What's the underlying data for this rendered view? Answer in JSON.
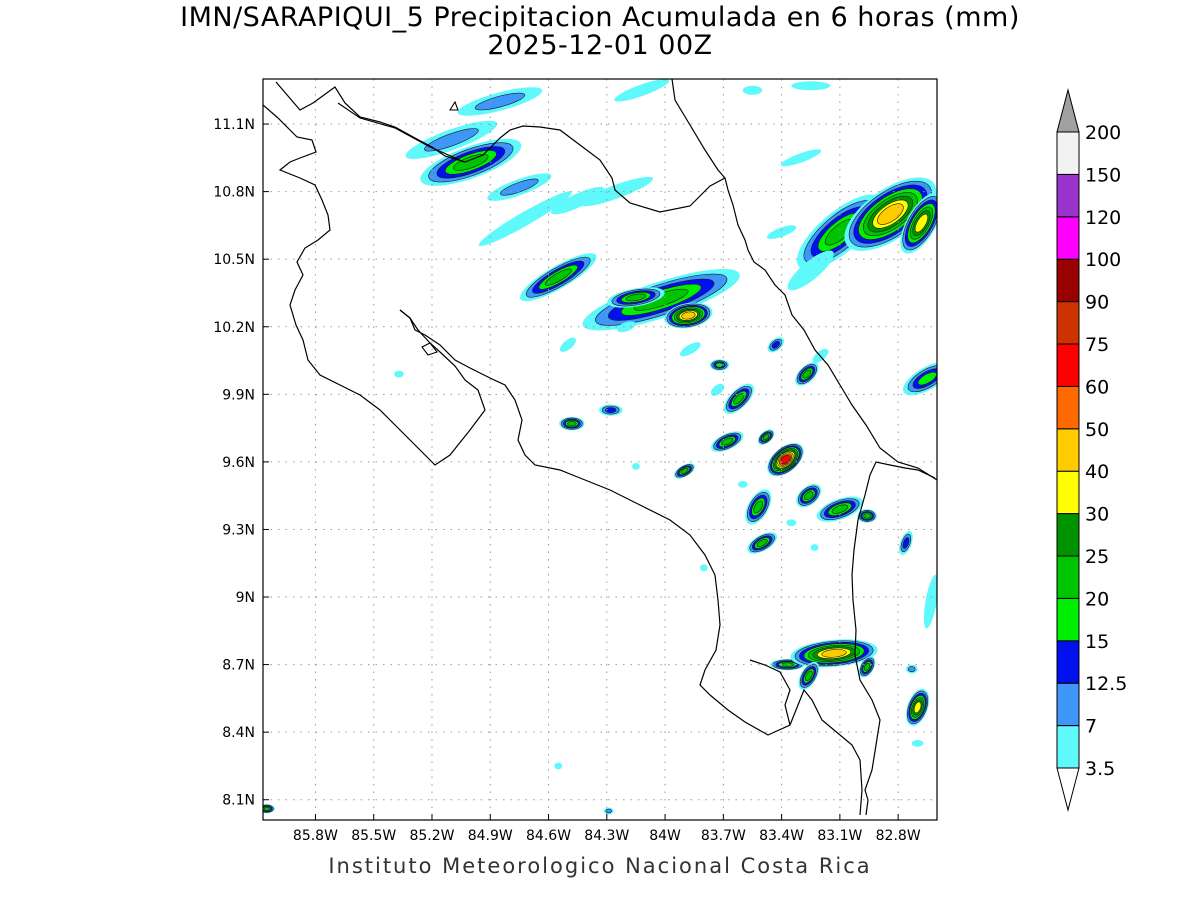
{
  "title_line1": "IMN/SARAPIQUI_5 Precipitacion Acumulada en 6 horas (mm)",
  "title_line2": "2025-12-01 00Z",
  "footer": "Instituto Meteorologico Nacional Costa Rica",
  "map": {
    "lon_range": [
      -86.07,
      -82.6
    ],
    "lat_range": [
      8.01,
      11.3
    ],
    "lat_ticks": [
      "11.1N",
      "10.8N",
      "10.5N",
      "10.2N",
      "9.9N",
      "9.6N",
      "9.3N",
      "9N",
      "8.7N",
      "8.4N",
      "8.1N"
    ],
    "lat_values": [
      11.1,
      10.8,
      10.5,
      10.2,
      9.9,
      9.6,
      9.3,
      9.0,
      8.7,
      8.4,
      8.1
    ],
    "lon_ticks": [
      "85.8W",
      "85.5W",
      "85.2W",
      "84.9W",
      "84.6W",
      "84.3W",
      "84W",
      "83.7W",
      "83.4W",
      "83.1W",
      "82.8W"
    ],
    "lon_values": [
      -85.8,
      -85.5,
      -85.2,
      -84.9,
      -84.6,
      -84.3,
      -84.0,
      -83.7,
      -83.4,
      -83.1,
      -82.8
    ],
    "grid": true,
    "coastline_color": "#000000"
  },
  "colorbar": {
    "levels": [
      "3.5",
      "7",
      "12.5",
      "15",
      "20",
      "25",
      "30",
      "40",
      "50",
      "60",
      "75",
      "90",
      "100",
      "120",
      "150",
      "200"
    ],
    "colors": [
      "#5ff8fb",
      "#3e96f9",
      "#0011ee",
      "#00ef00",
      "#00c400",
      "#009300",
      "#ffff00",
      "#ffcc00",
      "#ff6a00",
      "#ff0000",
      "#cc3300",
      "#990000",
      "#ff00ff",
      "#9933cc",
      "#f2f2f2",
      "#a0a0a0"
    ],
    "bins": [
      "3.5-7",
      "7-12.5",
      "12.5-15",
      "15-20",
      "20-25",
      "25-30",
      "30-40",
      "40-50",
      "50-60",
      "60-75",
      "75-90",
      "90-100",
      "100-120",
      "120-150",
      "150-200",
      ">200"
    ]
  },
  "precip_cells": [
    {
      "lon": -85.0,
      "lat": 10.93,
      "len": 0.55,
      "wid": 0.14,
      "rot": -20,
      "max": 20
    },
    {
      "lon": -84.85,
      "lat": 11.2,
      "len": 0.45,
      "wid": 0.08,
      "rot": -15,
      "max": 7
    },
    {
      "lon": -85.1,
      "lat": 11.03,
      "len": 0.5,
      "wid": 0.09,
      "rot": -20,
      "max": 7
    },
    {
      "lon": -84.75,
      "lat": 10.82,
      "len": 0.35,
      "wid": 0.07,
      "rot": -20,
      "max": 7
    },
    {
      "lon": -84.72,
      "lat": 10.68,
      "len": 0.55,
      "wid": 0.06,
      "rot": -30,
      "max": 3.5
    },
    {
      "lon": -84.45,
      "lat": 10.76,
      "len": 0.3,
      "wid": 0.06,
      "rot": -25,
      "max": 3.5
    },
    {
      "lon": -84.25,
      "lat": 10.8,
      "len": 0.4,
      "wid": 0.06,
      "rot": -20,
      "max": 3.5
    },
    {
      "lon": -84.12,
      "lat": 11.25,
      "len": 0.3,
      "wid": 0.05,
      "rot": -20,
      "max": 3.5
    },
    {
      "lon": -84.55,
      "lat": 10.42,
      "len": 0.45,
      "wid": 0.1,
      "rot": -30,
      "max": 20
    },
    {
      "lon": -84.02,
      "lat": 10.32,
      "len": 0.85,
      "wid": 0.16,
      "rot": -18,
      "max": 20
    },
    {
      "lon": -83.88,
      "lat": 10.25,
      "len": 0.25,
      "wid": 0.11,
      "rot": -10,
      "max": 40
    },
    {
      "lon": -84.15,
      "lat": 10.33,
      "len": 0.3,
      "wid": 0.08,
      "rot": -10,
      "max": 20
    },
    {
      "lon": -83.1,
      "lat": 10.62,
      "len": 0.55,
      "wid": 0.18,
      "rot": -40,
      "max": 20
    },
    {
      "lon": -82.84,
      "lat": 10.7,
      "len": 0.55,
      "wid": 0.22,
      "rot": -35,
      "max": 40
    },
    {
      "lon": -82.68,
      "lat": 10.66,
      "len": 0.35,
      "wid": 0.13,
      "rot": -60,
      "max": 30
    },
    {
      "lon": -83.25,
      "lat": 10.45,
      "len": 0.3,
      "wid": 0.08,
      "rot": -40,
      "max": 3.5
    },
    {
      "lon": -82.65,
      "lat": 9.97,
      "len": 0.28,
      "wid": 0.1,
      "rot": -30,
      "max": 15
    },
    {
      "lon": -83.62,
      "lat": 9.88,
      "len": 0.2,
      "wid": 0.08,
      "rot": -45,
      "max": 20
    },
    {
      "lon": -83.27,
      "lat": 9.99,
      "len": 0.15,
      "wid": 0.07,
      "rot": -45,
      "max": 20
    },
    {
      "lon": -83.72,
      "lat": 10.03,
      "len": 0.1,
      "wid": 0.05,
      "rot": 0,
      "max": 15
    },
    {
      "lon": -83.68,
      "lat": 9.69,
      "len": 0.18,
      "wid": 0.07,
      "rot": -25,
      "max": 20
    },
    {
      "lon": -83.38,
      "lat": 9.61,
      "len": 0.22,
      "wid": 0.11,
      "rot": -40,
      "max": 60
    },
    {
      "lon": -83.48,
      "lat": 9.71,
      "len": 0.1,
      "wid": 0.05,
      "rot": -40,
      "max": 20
    },
    {
      "lon": -83.52,
      "lat": 9.4,
      "len": 0.2,
      "wid": 0.09,
      "rot": -60,
      "max": 20
    },
    {
      "lon": -83.5,
      "lat": 9.24,
      "len": 0.17,
      "wid": 0.07,
      "rot": -30,
      "max": 20
    },
    {
      "lon": -83.26,
      "lat": 9.45,
      "len": 0.15,
      "wid": 0.08,
      "rot": -40,
      "max": 20
    },
    {
      "lon": -83.1,
      "lat": 9.39,
      "len": 0.25,
      "wid": 0.09,
      "rot": -20,
      "max": 20
    },
    {
      "lon": -82.96,
      "lat": 9.36,
      "len": 0.1,
      "wid": 0.06,
      "rot": 0,
      "max": 20
    },
    {
      "lon": -84.48,
      "lat": 9.77,
      "len": 0.13,
      "wid": 0.06,
      "rot": 0,
      "max": 20
    },
    {
      "lon": -84.28,
      "lat": 9.83,
      "len": 0.12,
      "wid": 0.05,
      "rot": 0,
      "max": 12.5
    },
    {
      "lon": -83.9,
      "lat": 9.56,
      "len": 0.12,
      "wid": 0.05,
      "rot": -30,
      "max": 20
    },
    {
      "lon": -82.76,
      "lat": 9.24,
      "len": 0.13,
      "wid": 0.05,
      "rot": -70,
      "max": 12.5
    },
    {
      "lon": -83.37,
      "lat": 8.7,
      "len": 0.18,
      "wid": 0.05,
      "rot": 0,
      "max": 20
    },
    {
      "lon": -83.13,
      "lat": 8.75,
      "len": 0.45,
      "wid": 0.12,
      "rot": -5,
      "max": 40
    },
    {
      "lon": -83.26,
      "lat": 8.65,
      "len": 0.16,
      "wid": 0.07,
      "rot": -60,
      "max": 20
    },
    {
      "lon": -82.96,
      "lat": 8.69,
      "len": 0.12,
      "wid": 0.06,
      "rot": -60,
      "max": 20
    },
    {
      "lon": -82.7,
      "lat": 8.51,
      "len": 0.2,
      "wid": 0.09,
      "rot": -70,
      "max": 30
    },
    {
      "lon": -82.73,
      "lat": 8.68,
      "len": 0.06,
      "wid": 0.04,
      "rot": 0,
      "max": 7
    },
    {
      "lon": -82.63,
      "lat": 8.98,
      "len": 0.28,
      "wid": 0.05,
      "rot": -80,
      "max": 3.5
    },
    {
      "lon": -86.05,
      "lat": 8.06,
      "len": 0.08,
      "wid": 0.04,
      "rot": 0,
      "max": 20
    },
    {
      "lon": -84.29,
      "lat": 8.05,
      "len": 0.05,
      "wid": 0.03,
      "rot": 0,
      "max": 7
    },
    {
      "lon": -84.55,
      "lat": 8.25,
      "len": 0.04,
      "wid": 0.03,
      "rot": 0,
      "max": 3.5
    },
    {
      "lon": -85.37,
      "lat": 9.99,
      "len": 0.05,
      "wid": 0.03,
      "rot": 0,
      "max": 3.5
    },
    {
      "lon": -83.6,
      "lat": 9.5,
      "len": 0.05,
      "wid": 0.03,
      "rot": 0,
      "max": 3.5
    },
    {
      "lon": -83.8,
      "lat": 9.13,
      "len": 0.04,
      "wid": 0.03,
      "rot": 0,
      "max": 3.5
    },
    {
      "lon": -84.15,
      "lat": 9.58,
      "len": 0.04,
      "wid": 0.03,
      "rot": 0,
      "max": 3.5
    },
    {
      "lon": -83.73,
      "lat": 9.92,
      "len": 0.08,
      "wid": 0.04,
      "rot": -40,
      "max": 3.5
    },
    {
      "lon": -83.87,
      "lat": 10.1,
      "len": 0.12,
      "wid": 0.04,
      "rot": -30,
      "max": 3.5
    },
    {
      "lon": -84.2,
      "lat": 10.2,
      "len": 0.1,
      "wid": 0.04,
      "rot": -20,
      "max": 3.5
    },
    {
      "lon": -84.5,
      "lat": 10.12,
      "len": 0.1,
      "wid": 0.04,
      "rot": -40,
      "max": 3.5
    },
    {
      "lon": -83.4,
      "lat": 10.62,
      "len": 0.16,
      "wid": 0.04,
      "rot": -20,
      "max": 3.5
    },
    {
      "lon": -83.3,
      "lat": 10.95,
      "len": 0.22,
      "wid": 0.04,
      "rot": -20,
      "max": 3.5
    },
    {
      "lon": -83.25,
      "lat": 11.27,
      "len": 0.2,
      "wid": 0.04,
      "rot": 0,
      "max": 3.5
    },
    {
      "lon": -83.55,
      "lat": 11.25,
      "len": 0.1,
      "wid": 0.04,
      "rot": 0,
      "max": 3.5
    },
    {
      "lon": -83.2,
      "lat": 10.07,
      "len": 0.1,
      "wid": 0.04,
      "rot": -40,
      "max": 3.5
    },
    {
      "lon": -83.43,
      "lat": 10.12,
      "len": 0.1,
      "wid": 0.05,
      "rot": -40,
      "max": 12.5
    },
    {
      "lon": -83.35,
      "lat": 9.33,
      "len": 0.05,
      "wid": 0.03,
      "rot": 0,
      "max": 3.5
    },
    {
      "lon": -83.23,
      "lat": 9.22,
      "len": 0.04,
      "wid": 0.03,
      "rot": 0,
      "max": 3.5
    },
    {
      "lon": -82.7,
      "lat": 8.35,
      "len": 0.06,
      "wid": 0.03,
      "rot": 0,
      "max": 3.5
    }
  ]
}
